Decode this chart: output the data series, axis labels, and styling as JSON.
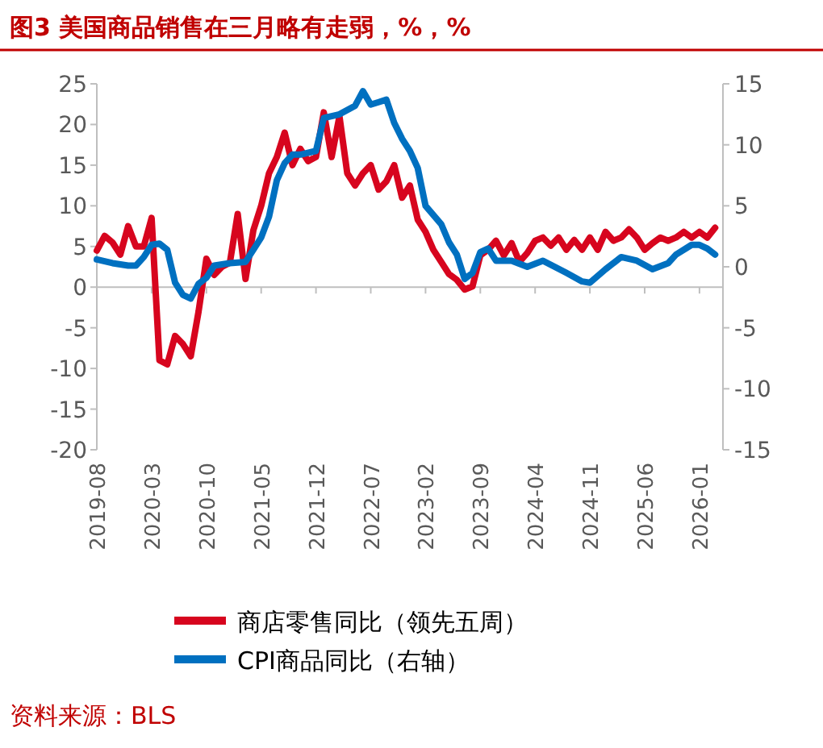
{
  "chart_data": {
    "type": "line",
    "title": "图3  美国商品销售在三月略有走弱，%，%",
    "xlim": [
      "2019-08",
      "2026-04"
    ],
    "xticks": [
      "2019-08",
      "2020-03",
      "2020-10",
      "2021-05",
      "2021-12",
      "2022-07",
      "2023-02",
      "2023-09",
      "2024-04",
      "2024-11",
      "2025-06",
      "2026-01"
    ],
    "ylim": [
      -20,
      25
    ],
    "yticks": [
      -20,
      -15,
      -10,
      -5,
      0,
      5,
      10,
      15,
      20,
      25
    ],
    "y2lim": [
      -15,
      15
    ],
    "y2ticks": [
      -15,
      -10,
      -5,
      0,
      5,
      10,
      15
    ],
    "legend": "bottom",
    "line_style": "solid",
    "series": [
      {
        "name": "商店零售同比（领先五周）",
        "color": "#d7051e",
        "x": [
          "2019-08",
          "2019-09",
          "2019-10",
          "2019-11",
          "2019-12",
          "2020-01",
          "2020-02",
          "2020-03",
          "2020-04",
          "2020-05",
          "2020-06",
          "2020-07",
          "2020-08",
          "2020-09",
          "2020-10",
          "2020-11",
          "2020-12",
          "2021-01",
          "2021-02",
          "2021-03",
          "2021-04",
          "2021-05",
          "2021-06",
          "2021-07",
          "2021-08",
          "2021-09",
          "2021-10",
          "2021-11",
          "2021-12",
          "2022-01",
          "2022-02",
          "2022-03",
          "2022-04",
          "2022-05",
          "2022-06",
          "2022-07",
          "2022-08",
          "2022-09",
          "2022-10",
          "2022-11",
          "2022-12",
          "2023-01",
          "2023-02",
          "2023-03",
          "2023-04",
          "2023-05",
          "2023-06",
          "2023-07",
          "2023-08",
          "2023-09",
          "2023-10",
          "2023-11",
          "2023-12",
          "2024-01",
          "2024-02",
          "2024-03",
          "2024-04",
          "2024-05",
          "2024-06",
          "2024-07",
          "2024-08",
          "2024-09",
          "2024-10",
          "2024-11",
          "2024-12",
          "2025-01",
          "2025-02",
          "2025-03",
          "2025-04",
          "2025-05",
          "2025-06",
          "2025-07",
          "2025-08",
          "2025-09",
          "2025-10",
          "2025-11",
          "2025-12",
          "2026-01",
          "2026-02",
          "2026-03"
        ],
        "values": [
          4.5,
          6.3,
          5.5,
          4,
          7.5,
          5,
          5,
          8.5,
          -9,
          -9.5,
          -6,
          -7,
          -8.5,
          -3,
          3.5,
          1.5,
          2.5,
          3,
          9,
          1,
          7,
          10,
          14,
          16,
          19,
          15,
          17,
          15.5,
          16,
          21.5,
          16,
          21,
          14,
          12.5,
          14,
          15,
          12,
          13,
          15,
          11,
          12.5,
          8.3,
          6.8,
          4.6,
          3.1,
          1.6,
          0.9,
          -0.3,
          0.1,
          3.9,
          4.6,
          5.7,
          3.9,
          5.4,
          3.1,
          4.2,
          5.7,
          6.1,
          5.1,
          6.1,
          4.6,
          5.8,
          4.6,
          6.1,
          4.6,
          6.8,
          5.7,
          6.1,
          7.1,
          6.1,
          4.6,
          5.4,
          6.1,
          5.7,
          6.1,
          6.8,
          6.1,
          6.8,
          6.1,
          7.3
        ]
      },
      {
        "name": "CPI商品同比（右轴）",
        "color": "#0070c0",
        "axis": "y2",
        "x": [
          "2019-08",
          "2019-10",
          "2019-12",
          "2020-01",
          "2020-02",
          "2020-03",
          "2020-04",
          "2020-05",
          "2020-06",
          "2020-07",
          "2020-08",
          "2020-09",
          "2020-10",
          "2020-11",
          "2021-01",
          "2021-03",
          "2021-04",
          "2021-05",
          "2021-06",
          "2021-07",
          "2021-08",
          "2021-09",
          "2021-10",
          "2021-12",
          "2022-01",
          "2022-03",
          "2022-05",
          "2022-06",
          "2022-07",
          "2022-08",
          "2022-09",
          "2022-10",
          "2022-11",
          "2022-12",
          "2023-01",
          "2023-02",
          "2023-04",
          "2023-05",
          "2023-06",
          "2023-07",
          "2023-08",
          "2023-09",
          "2023-10",
          "2023-11",
          "2024-01",
          "2024-03",
          "2024-05",
          "2024-08",
          "2024-10",
          "2024-11",
          "2025-01",
          "2025-03",
          "2025-05",
          "2025-07",
          "2025-09",
          "2025-10",
          "2025-12",
          "2026-01",
          "2026-02",
          "2026-03"
        ],
        "values": [
          0.6,
          0.3,
          0.1,
          0.1,
          0.8,
          1.8,
          1.9,
          1.4,
          -1.3,
          -2.3,
          -2.6,
          -1.4,
          -0.9,
          0.1,
          0.3,
          0.4,
          1.4,
          2.4,
          4.1,
          7.1,
          8.5,
          9.2,
          9.2,
          9.5,
          12.2,
          12.5,
          13.2,
          14.4,
          13.3,
          13.5,
          13.7,
          11.8,
          10.5,
          9.5,
          8.1,
          5,
          3.5,
          2,
          1,
          -1,
          -0.5,
          1.2,
          1.5,
          0.5,
          0.5,
          0,
          0.5,
          -0.5,
          -1.2,
          -1.3,
          -0.2,
          0.8,
          0.5,
          -0.2,
          0.3,
          1,
          1.8,
          1.8,
          1.5,
          1
        ]
      }
    ],
    "annotations": [
      "资料来源：BLS"
    ]
  }
}
